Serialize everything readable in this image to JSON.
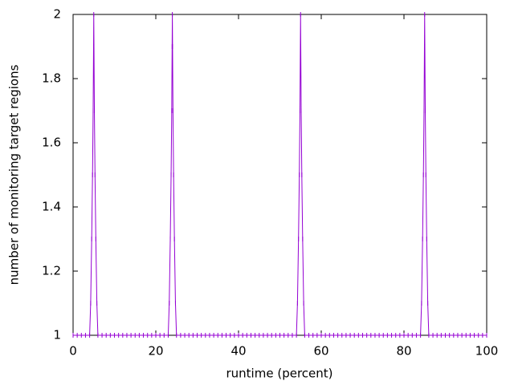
{
  "chart_data": {
    "type": "line",
    "xlabel": "runtime (percent)",
    "ylabel": "number of monitoring target regions",
    "x": [
      0,
      1,
      2,
      3,
      4,
      4.25,
      4.5,
      4.7,
      4.85,
      4.95,
      5,
      5.05,
      5.15,
      5.3,
      5.5,
      5.75,
      6,
      7,
      8,
      9,
      10,
      11,
      12,
      13,
      14,
      15,
      16,
      17,
      18,
      19,
      20,
      21,
      22,
      23,
      23.25,
      23.5,
      23.7,
      23.85,
      23.95,
      24,
      24.05,
      24.15,
      24.3,
      24.5,
      24.75,
      25,
      26,
      27,
      28,
      29,
      30,
      31,
      32,
      33,
      34,
      35,
      36,
      37,
      38,
      39,
      40,
      41,
      42,
      43,
      44,
      45,
      46,
      47,
      48,
      49,
      50,
      51,
      52,
      53,
      54,
      54.25,
      54.5,
      54.7,
      54.85,
      54.95,
      55,
      55.05,
      55.15,
      55.3,
      55.5,
      55.75,
      56,
      57,
      58,
      59,
      60,
      61,
      62,
      63,
      64,
      65,
      66,
      67,
      68,
      69,
      70,
      71,
      72,
      73,
      74,
      75,
      76,
      77,
      78,
      79,
      80,
      81,
      82,
      83,
      84,
      84.25,
      84.5,
      84.7,
      84.85,
      84.95,
      85,
      85.05,
      85.15,
      85.3,
      85.5,
      85.75,
      86,
      87,
      88,
      89,
      90,
      91,
      92,
      93,
      94,
      95,
      96,
      97,
      98,
      99,
      100
    ],
    "series": [
      {
        "color": "#9400d3",
        "values": [
          1,
          1,
          1,
          1,
          1,
          1.1,
          1.3,
          1.5,
          1.7,
          1.9,
          2,
          1.9,
          1.7,
          1.5,
          1.3,
          1.1,
          1,
          1,
          1,
          1,
          1,
          1,
          1,
          1,
          1,
          1,
          1,
          1,
          1,
          1,
          1,
          1,
          1,
          1,
          1.1,
          1.3,
          1.5,
          1.7,
          1.9,
          2,
          1.9,
          1.7,
          1.5,
          1.3,
          1.1,
          1,
          1,
          1,
          1,
          1,
          1,
          1,
          1,
          1,
          1,
          1,
          1,
          1,
          1,
          1,
          1,
          1,
          1,
          1,
          1,
          1,
          1,
          1,
          1,
          1,
          1,
          1,
          1,
          1,
          1,
          1.1,
          1.3,
          1.5,
          1.7,
          1.9,
          2,
          1.9,
          1.7,
          1.5,
          1.3,
          1.1,
          1,
          1,
          1,
          1,
          1,
          1,
          1,
          1,
          1,
          1,
          1,
          1,
          1,
          1,
          1,
          1,
          1,
          1,
          1,
          1,
          1,
          1,
          1,
          1,
          1,
          1,
          1,
          1,
          1,
          1.1,
          1.3,
          1.5,
          1.7,
          1.9,
          2,
          1.9,
          1.7,
          1.5,
          1.3,
          1.1,
          1,
          1,
          1,
          1,
          1,
          1,
          1,
          1,
          1,
          1,
          1,
          1,
          1,
          1,
          1
        ]
      }
    ],
    "xlim": [
      0,
      100
    ],
    "xticks": [
      0,
      20,
      40,
      60,
      80,
      100
    ],
    "ylim": [
      1,
      2
    ],
    "yticks": [
      1,
      1.2,
      1.4,
      1.6,
      1.8,
      2
    ]
  }
}
